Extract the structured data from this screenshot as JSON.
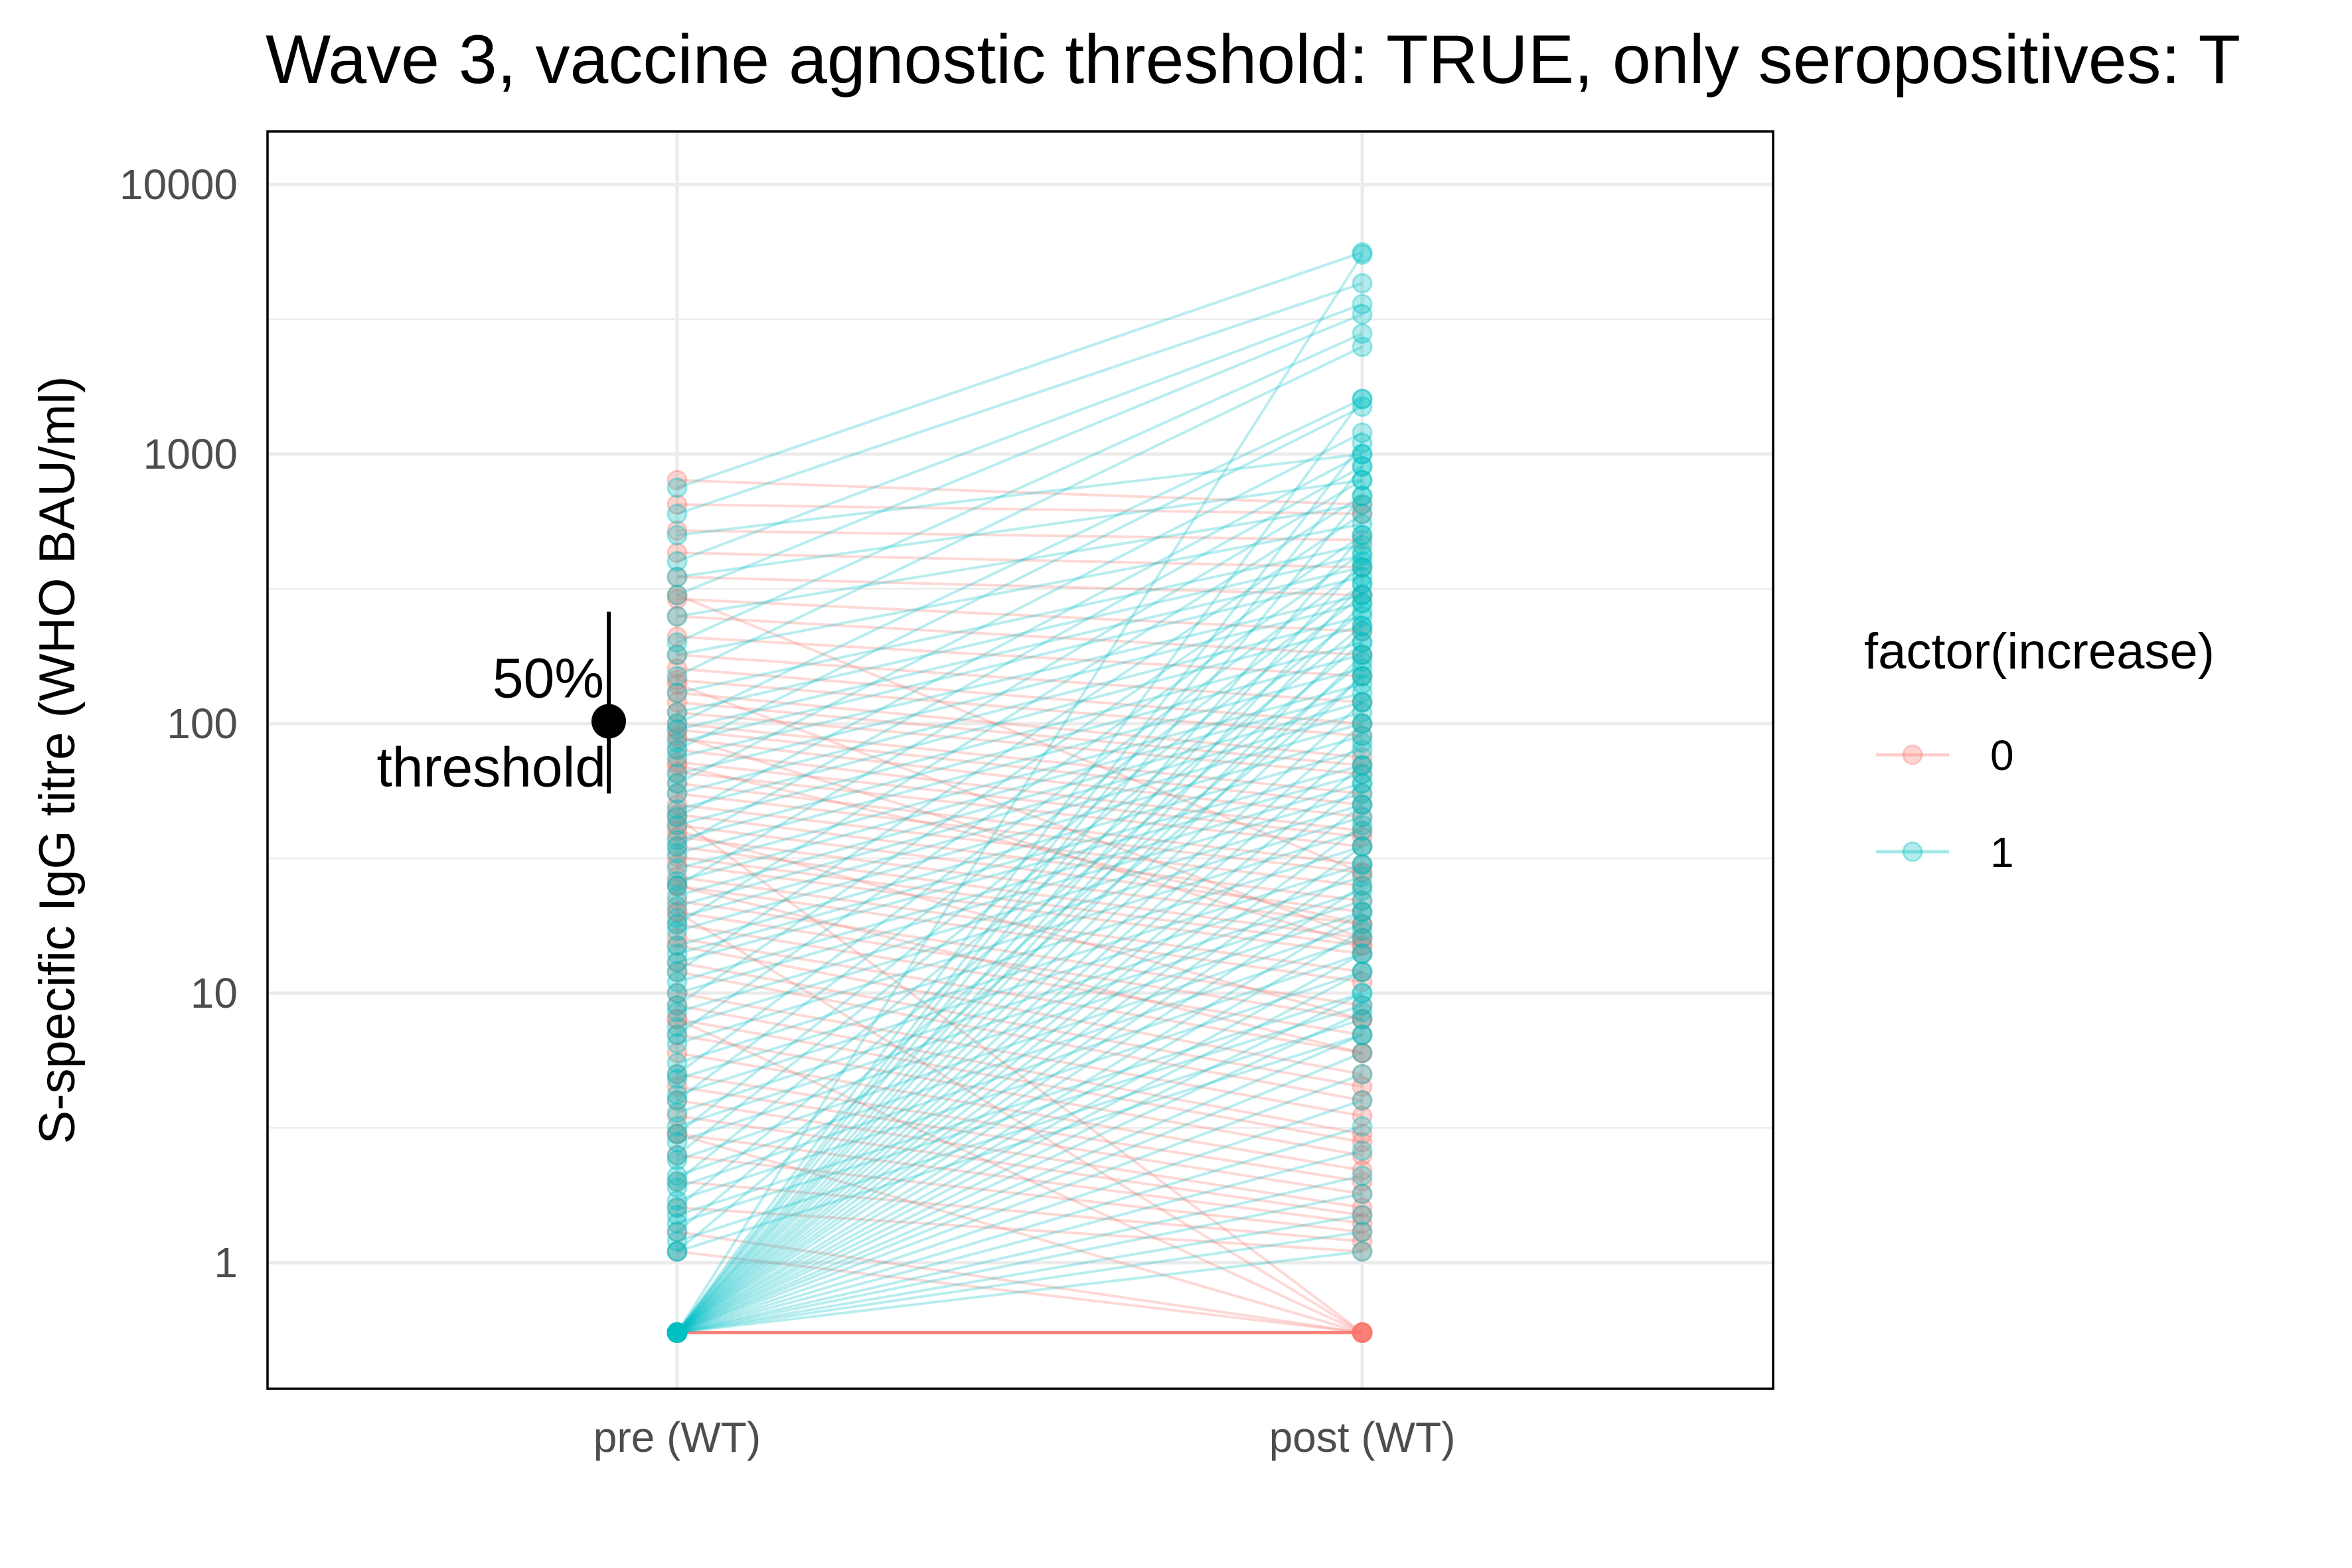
{
  "chart_data": {
    "type": "line",
    "title": "Wave 3, vaccine agnostic threshold: TRUE, only seropositives: T",
    "xlabel": "",
    "ylabel": "S-specific IgG titre (WHO BAU/ml)",
    "y_scale": "log10",
    "ylim": [
      0.45,
      16000
    ],
    "categories": [
      "pre (WT)",
      "post (WT)"
    ],
    "y_ticks": [
      1,
      10,
      100,
      1000,
      10000
    ],
    "y_tick_labels": [
      "1",
      "10",
      "100",
      "1000",
      "10000"
    ],
    "grid": true,
    "legend": {
      "title": "factor(increase)",
      "position": "right",
      "entries": [
        {
          "label": "0",
          "color": "#F8766D"
        },
        {
          "label": "1",
          "color": "#00BFC4"
        }
      ]
    },
    "series": [
      {
        "group": "0",
        "color": "#F8766D",
        "pairs": [
          [
            0.55,
            0.55
          ],
          [
            800,
            650
          ],
          [
            650,
            600
          ],
          [
            520,
            480
          ],
          [
            430,
            380
          ],
          [
            350,
            300
          ],
          [
            290,
            220
          ],
          [
            250,
            180
          ],
          [
            210,
            150
          ],
          [
            180,
            120
          ],
          [
            160,
            100
          ],
          [
            145,
            90
          ],
          [
            130,
            75
          ],
          [
            120,
            70
          ],
          [
            110,
            65
          ],
          [
            100,
            55
          ],
          [
            95,
            50
          ],
          [
            88,
            45
          ],
          [
            80,
            40
          ],
          [
            72,
            38
          ],
          [
            66,
            35
          ],
          [
            60,
            30
          ],
          [
            55,
            28
          ],
          [
            50,
            25
          ],
          [
            46,
            22
          ],
          [
            42,
            20
          ],
          [
            38,
            18
          ],
          [
            35,
            16
          ],
          [
            32,
            15
          ],
          [
            30,
            14
          ],
          [
            27,
            12
          ],
          [
            25,
            11
          ],
          [
            22,
            9
          ],
          [
            20,
            8
          ],
          [
            18,
            7
          ],
          [
            16,
            6
          ],
          [
            15,
            5
          ],
          [
            13,
            4.5
          ],
          [
            12,
            4
          ],
          [
            10,
            3.5
          ],
          [
            9,
            3
          ],
          [
            8,
            2.8
          ],
          [
            7,
            2.5
          ],
          [
            6,
            2.2
          ],
          [
            5,
            2
          ],
          [
            4.5,
            1.8
          ],
          [
            4,
            1.6
          ],
          [
            3.5,
            1.5
          ],
          [
            3,
            1.4
          ],
          [
            2.5,
            1.3
          ],
          [
            2,
            1.2
          ],
          [
            1.6,
            1.1
          ],
          [
            1.3,
            0.55
          ],
          [
            1.1,
            0.55
          ],
          [
            3,
            0.55
          ],
          [
            8,
            0.55
          ],
          [
            20,
            0.55
          ],
          [
            45,
            0.55
          ],
          [
            140,
            16
          ],
          [
            300,
            28
          ],
          [
            90,
            15
          ],
          [
            70,
            18
          ],
          [
            40,
            8
          ],
          [
            25,
            6
          ]
        ]
      },
      {
        "group": "1",
        "color": "#00BFC4",
        "pairs": [
          [
            0.55,
            5500
          ],
          [
            0.55,
            1600
          ],
          [
            0.55,
            1100
          ],
          [
            0.55,
            900
          ],
          [
            0.55,
            700
          ],
          [
            0.55,
            500
          ],
          [
            0.55,
            400
          ],
          [
            0.55,
            330
          ],
          [
            0.55,
            280
          ],
          [
            0.55,
            220
          ],
          [
            0.55,
            180
          ],
          [
            0.55,
            150
          ],
          [
            0.55,
            120
          ],
          [
            0.55,
            100
          ],
          [
            0.55,
            85
          ],
          [
            0.55,
            70
          ],
          [
            0.55,
            60
          ],
          [
            0.55,
            50
          ],
          [
            0.55,
            42
          ],
          [
            0.55,
            35
          ],
          [
            0.55,
            30
          ],
          [
            0.55,
            25
          ],
          [
            0.55,
            20
          ],
          [
            0.55,
            17
          ],
          [
            0.55,
            14
          ],
          [
            0.55,
            12
          ],
          [
            0.55,
            10
          ],
          [
            0.55,
            8.5
          ],
          [
            0.55,
            7
          ],
          [
            0.55,
            6
          ],
          [
            0.55,
            5
          ],
          [
            0.55,
            4
          ],
          [
            0.55,
            3.2
          ],
          [
            0.55,
            2.6
          ],
          [
            0.55,
            2.1
          ],
          [
            0.55,
            1.8
          ],
          [
            0.55,
            1.5
          ],
          [
            0.55,
            1.3
          ],
          [
            0.55,
            1.1
          ],
          [
            750,
            5600
          ],
          [
            600,
            4300
          ],
          [
            400,
            3600
          ],
          [
            300,
            3300
          ],
          [
            200,
            2800
          ],
          [
            150,
            2500
          ],
          [
            100,
            1600
          ],
          [
            80,
            1500
          ],
          [
            60,
            1200
          ],
          [
            45,
            1000
          ],
          [
            35,
            900
          ],
          [
            25,
            800
          ],
          [
            18,
            700
          ],
          [
            12,
            600
          ],
          [
            9,
            500
          ],
          [
            7,
            430
          ],
          [
            5,
            380
          ],
          [
            4,
            330
          ],
          [
            3,
            300
          ],
          [
            2.5,
            260
          ],
          [
            2,
            230
          ],
          [
            1.6,
            200
          ],
          [
            1.3,
            170
          ],
          [
            1.1,
            150
          ],
          [
            500,
            1000
          ],
          [
            350,
            800
          ],
          [
            250,
            650
          ],
          [
            180,
            550
          ],
          [
            130,
            460
          ],
          [
            110,
            420
          ],
          [
            95,
            380
          ],
          [
            85,
            350
          ],
          [
            75,
            300
          ],
          [
            65,
            280
          ],
          [
            55,
            250
          ],
          [
            48,
            230
          ],
          [
            42,
            200
          ],
          [
            37,
            180
          ],
          [
            33,
            160
          ],
          [
            29,
            140
          ],
          [
            26,
            130
          ],
          [
            23,
            120
          ],
          [
            21,
            110
          ],
          [
            19,
            100
          ],
          [
            17,
            90
          ],
          [
            15,
            80
          ],
          [
            14,
            70
          ],
          [
            13,
            65
          ],
          [
            11,
            60
          ],
          [
            10,
            55
          ],
          [
            8.5,
            50
          ],
          [
            7.5,
            45
          ],
          [
            6.5,
            40
          ],
          [
            5.5,
            35
          ],
          [
            4.8,
            30
          ],
          [
            4.2,
            27
          ],
          [
            3.6,
            24
          ],
          [
            3.2,
            22
          ],
          [
            2.8,
            20
          ],
          [
            2.4,
            18
          ],
          [
            2.1,
            16
          ],
          [
            1.9,
            14
          ],
          [
            1.7,
            12
          ],
          [
            1.5,
            10
          ],
          [
            1.4,
            9
          ],
          [
            1.2,
            8
          ],
          [
            1.1,
            7
          ]
        ]
      }
    ]
  },
  "annotation": {
    "label_line1": "50%",
    "label_line2": "threshold",
    "threshold_value": 102,
    "range_low": 55,
    "range_high": 260,
    "color": "#000000"
  }
}
